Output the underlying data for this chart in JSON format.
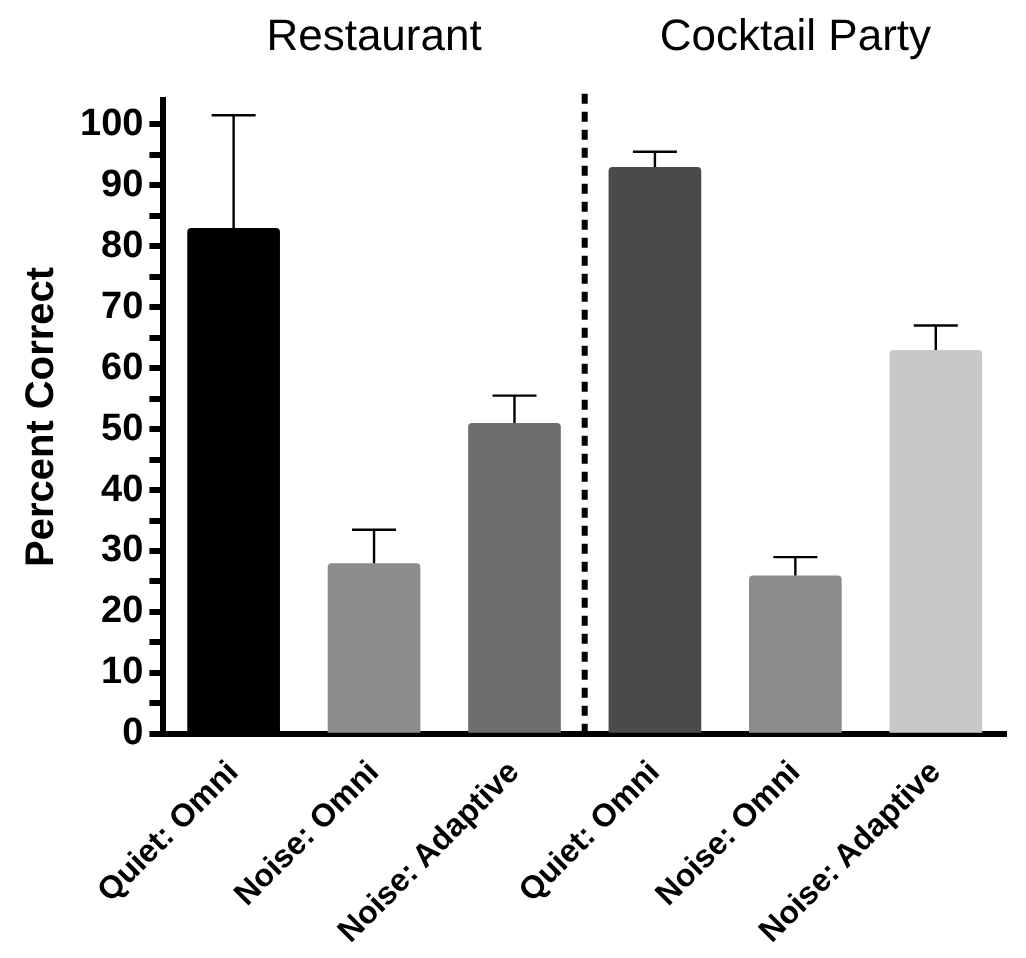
{
  "chart_data": {
    "type": "bar",
    "ylabel": "Percent Correct",
    "categories": [
      "Quiet: Omni",
      "Noise: Omni",
      "Noise: Adaptive",
      "Quiet: Omni",
      "Noise: Omni",
      "Noise: Adaptive"
    ],
    "values": [
      83,
      28,
      51,
      93,
      26,
      63
    ],
    "colors": [
      "#000000",
      "#8c8c8c",
      "#6e6e6e",
      "#4a4a4a",
      "#8c8c8c",
      "#c8c8c8"
    ],
    "errors": [
      [
        83,
        101.5
      ],
      [
        28,
        33.5
      ],
      [
        51,
        55.5
      ],
      [
        93,
        95.5
      ],
      [
        26,
        29
      ],
      [
        63,
        67
      ]
    ],
    "ylim": [
      0,
      104
    ],
    "yticks": [
      0,
      {
        "value": 5,
        "label": null
      },
      10,
      {
        "value": 15,
        "label": null
      },
      20,
      {
        "value": 25,
        "label": null
      },
      30,
      {
        "value": 35,
        "label": null
      },
      40,
      {
        "value": 45,
        "label": null
      },
      50,
      {
        "value": 55,
        "label": null
      },
      60,
      {
        "value": 65,
        "label": null
      },
      70,
      {
        "value": 75,
        "label": null
      },
      80,
      {
        "value": 85,
        "label": null
      },
      90,
      {
        "value": 95,
        "label": null
      },
      100
    ],
    "annotations": [
      "Restaurant",
      "Cocktail Party"
    ],
    "grid": false,
    "legend": false
  }
}
